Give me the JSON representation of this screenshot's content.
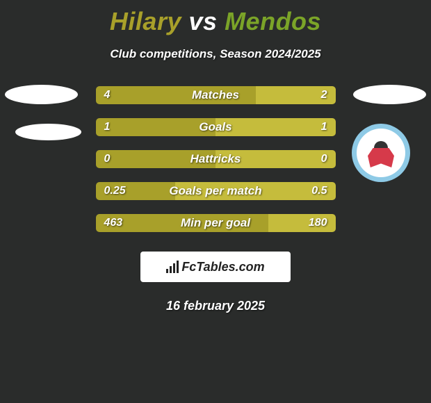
{
  "title": {
    "player1": "Hilary",
    "vs": "vs",
    "player2": "Mendos",
    "player1_color": "#a8a02a",
    "vs_color": "#ffffff",
    "player2_color": "#7ba428"
  },
  "subtitle": "Club competitions, Season 2024/2025",
  "bars": [
    {
      "label": "Matches",
      "left_val": "4",
      "right_val": "2",
      "left_width_pct": 66.7
    },
    {
      "label": "Goals",
      "left_val": "1",
      "right_val": "1",
      "left_width_pct": 50
    },
    {
      "label": "Hattricks",
      "left_val": "0",
      "right_val": "0",
      "left_width_pct": 50
    },
    {
      "label": "Goals per match",
      "left_val": "0.25",
      "right_val": "0.5",
      "left_width_pct": 33.3
    },
    {
      "label": "Min per goal",
      "left_val": "463",
      "right_val": "180",
      "left_width_pct": 72
    }
  ],
  "bar_colors": {
    "left": "#a8a02a",
    "right": "#c5bc3c",
    "text": "#ffffff"
  },
  "logo_text": "FcTables.com",
  "date": "16 february 2025",
  "background_color": "#2a2c2b"
}
